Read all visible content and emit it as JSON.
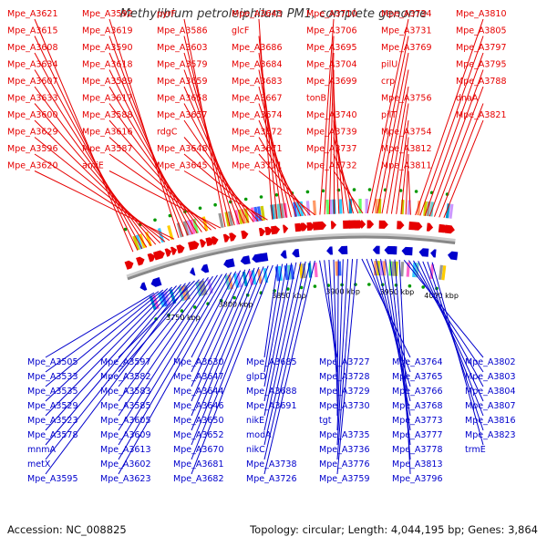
{
  "title": "Methylibium petroleiphilum PM1, complete genome",
  "footer": {
    "accession": "Accession: NC_008825",
    "topology": "Topology: circular; Length: 4,044,195 bp; Genes: 3,864"
  },
  "scale_labels": [
    "3750 kbp",
    "3800 kbp",
    "3850 kbp",
    "3900 kbp",
    "3950 kbp",
    "4000 kbp"
  ],
  "labels_top": [
    "Mpe_A3621",
    "Mpe_A3615",
    "Mpe_A3608",
    "Mpe_A3634",
    "Mpe_A3607",
    "Mpe_A3633",
    "Mpe_A3600",
    "Mpe_A3629",
    "Mpe_A3596",
    "Mpe_A3620",
    "Mpe_A3592",
    "Mpe_A3619",
    "Mpe_A3590",
    "Mpe_A3618",
    "Mpe_A3589",
    "Mpe_A3617",
    "Mpe_A3588",
    "Mpe_A3616",
    "Mpe_A3587",
    "amiE",
    "pyrF",
    "Mpe_A3586",
    "Mpe_A3603",
    "Mpe_A3579",
    "Mpe_A3659",
    "Mpe_A3658",
    "Mpe_A3657",
    "rdgC",
    "Mpe_A3648",
    "Mpe_A3645",
    "Mpe_A3643",
    "glcF",
    "Mpe_A3686",
    "Mpe_A3684",
    "Mpe_A3683",
    "Mpe_A3667",
    "Mpe_A3674",
    "Mpe_A3672",
    "Mpe_A3671",
    "Mpe_A3711",
    "Mpe_A3710",
    "Mpe_A3706",
    "Mpe_A3695",
    "Mpe_A3704",
    "Mpe_A3699",
    "tonB",
    "Mpe_A3740",
    "Mpe_A3739",
    "Mpe_A3737",
    "Mpe_A3732",
    "Mpe_A3734",
    "Mpe_A3731",
    "Mpe_A3769",
    "pilU",
    "crp",
    "Mpe_A3756",
    "pilT",
    "Mpe_A3754",
    "Mpe_A3812",
    "Mpe_A3811",
    "Mpe_A3810",
    "Mpe_A3805",
    "Mpe_A3797",
    "Mpe_A3795",
    "Mpe_A3788",
    "dnaA",
    "Mpe_A3821"
  ],
  "labels_bottom": [
    "Mpe_A3505",
    "Mpe_A3533",
    "Mpe_A3535",
    "Mpe_A3529",
    "Mpe_A3523",
    "Mpe_A3578",
    "mnmA",
    "metX",
    "Mpe_A3595",
    "Mpe_A3597",
    "Mpe_A3582",
    "Mpe_A3583",
    "Mpe_A3585",
    "Mpe_A3605",
    "Mpe_A3609",
    "Mpe_A3613",
    "Mpe_A3602",
    "Mpe_A3623",
    "Mpe_A3630",
    "Mpe_A3647",
    "Mpe_A3644",
    "Mpe_A3646",
    "Mpe_A3650",
    "Mpe_A3652",
    "Mpe_A3670",
    "Mpe_A3681",
    "Mpe_A3682",
    "Mpe_A3685",
    "glpD",
    "Mpe_A3688",
    "Mpe_A3691",
    "nikE",
    "modA",
    "nikC",
    "Mpe_A3738",
    "Mpe_A3726",
    "Mpe_A3727",
    "Mpe_A3728",
    "Mpe_A3729",
    "Mpe_A3730",
    "tgt",
    "Mpe_A3735",
    "Mpe_A3736",
    "Mpe_A3776",
    "Mpe_A3759",
    "Mpe_A3764",
    "Mpe_A3765",
    "Mpe_A3766",
    "Mpe_A3768",
    "Mpe_A3773",
    "Mpe_A3777",
    "Mpe_A3778",
    "Mpe_A3813",
    "Mpe_A3796",
    "Mpe_A3802",
    "Mpe_A3803",
    "Mpe_A3804",
    "Mpe_A3807",
    "Mpe_A3816",
    "Mpe_A3823",
    "trmE"
  ],
  "colors": {
    "forward": "#e60000",
    "reverse": "#0000cc",
    "backbone": "#888888"
  }
}
